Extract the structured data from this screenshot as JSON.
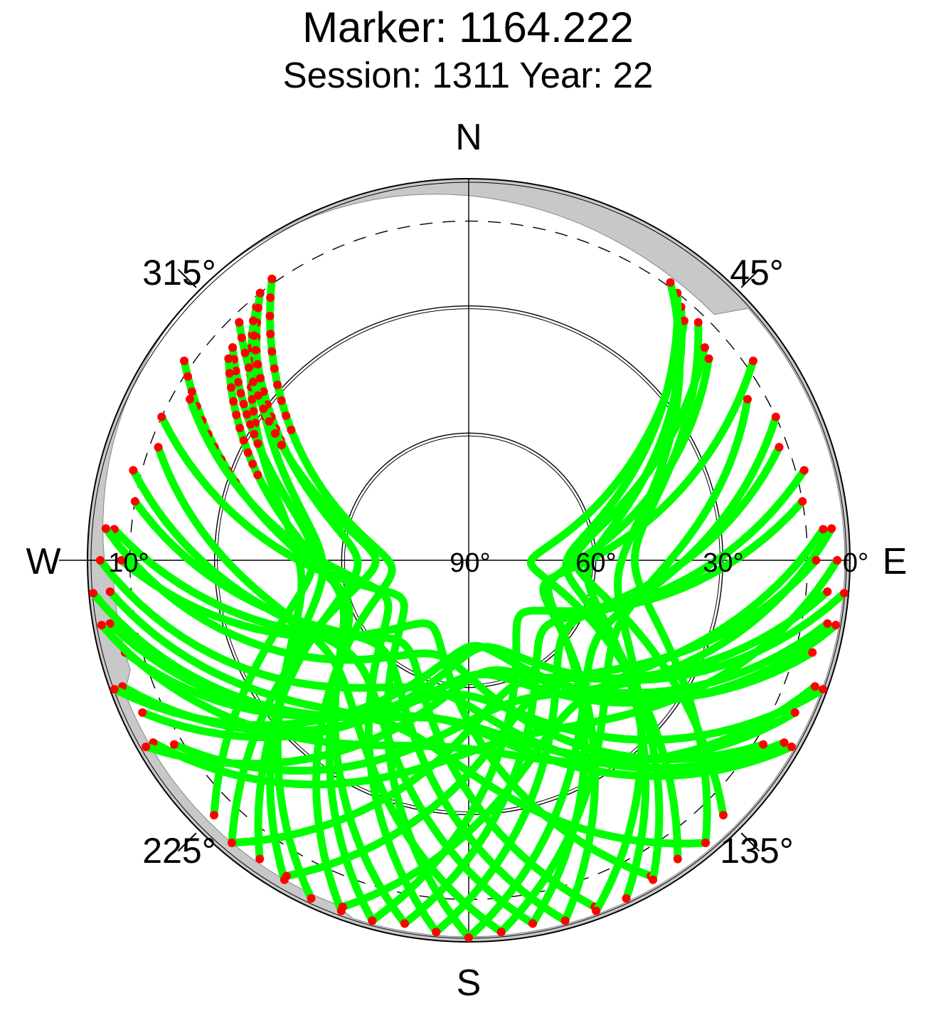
{
  "title": "Marker: 1164.222",
  "subtitle": "Session: 1311 Year: 22",
  "chart_data": {
    "type": "scatter",
    "projection": "polar-skyplot",
    "direction_labels": {
      "north": "N",
      "east": "E",
      "south": "S",
      "west": "W"
    },
    "azimuth_labels": [
      "45°",
      "135°",
      "225°",
      "315°"
    ],
    "elevation_labels": [
      "0°",
      "10°",
      "30°",
      "60°",
      "90°"
    ],
    "elevation_circles": [
      30,
      60
    ],
    "cutoff_elevation": 10,
    "colors": {
      "tracked": "#00ff00",
      "masked": "#ff0000",
      "horizon_mask": "#c8c8c8"
    },
    "tracks": [
      {
        "az0": 320,
        "az1": 205,
        "el0": 12,
        "el1": 2
      },
      {
        "az0": 322,
        "az1": 210,
        "el0": 10,
        "el1": 3
      },
      {
        "az0": 318,
        "az1": 215,
        "el0": 14,
        "el1": 4
      },
      {
        "az0": 316,
        "az1": 220,
        "el0": 12,
        "el1": 3
      },
      {
        "az0": 325,
        "az1": 200,
        "el0": 9,
        "el1": 2
      },
      {
        "az0": 312,
        "az1": 225,
        "el0": 15,
        "el1": 5
      },
      {
        "az0": 310,
        "az1": 190,
        "el0": 16,
        "el1": 3
      },
      {
        "az0": 305,
        "az1": 195,
        "el0": 8,
        "el1": 2
      },
      {
        "az0": 300,
        "az1": 185,
        "el0": 14,
        "el1": 2
      },
      {
        "az0": 295,
        "az1": 180,
        "el0": 10,
        "el1": 1
      },
      {
        "az0": 290,
        "az1": 175,
        "el0": 12,
        "el1": 2
      },
      {
        "az0": 285,
        "az1": 170,
        "el0": 8,
        "el1": 3
      },
      {
        "az0": 280,
        "az1": 165,
        "el0": 10,
        "el1": 2
      },
      {
        "az0": 275,
        "az1": 160,
        "el0": 6,
        "el1": 3
      },
      {
        "az0": 270,
        "az1": 150,
        "el0": 8,
        "el1": 4
      },
      {
        "az0": 265,
        "az1": 140,
        "el0": 5,
        "el1": 3
      },
      {
        "az0": 260,
        "az1": 120,
        "el0": 4,
        "el1": 2
      },
      {
        "az0": 255,
        "az1": 110,
        "el0": 6,
        "el1": 1
      },
      {
        "az0": 250,
        "az1": 100,
        "el0": 3,
        "el1": 2
      },
      {
        "az0": 245,
        "az1": 95,
        "el0": 5,
        "el1": 1
      },
      {
        "az0": 240,
        "az1": 90,
        "el0": 4,
        "el1": 3
      },
      {
        "az0": 238,
        "az1": 85,
        "el0": 8,
        "el1": 4
      },
      {
        "az0": 40,
        "az1": 155,
        "el0": 12,
        "el1": 2
      },
      {
        "az0": 38,
        "az1": 150,
        "el0": 10,
        "el1": 3
      },
      {
        "az0": 42,
        "az1": 145,
        "el0": 14,
        "el1": 4
      },
      {
        "az0": 44,
        "az1": 140,
        "el0": 12,
        "el1": 3
      },
      {
        "az0": 36,
        "az1": 160,
        "el0": 9,
        "el1": 2
      },
      {
        "az0": 48,
        "az1": 135,
        "el0": 15,
        "el1": 5
      },
      {
        "az0": 50,
        "az1": 170,
        "el0": 16,
        "el1": 3
      },
      {
        "az0": 55,
        "az1": 165,
        "el0": 8,
        "el1": 2
      },
      {
        "az0": 60,
        "az1": 175,
        "el0": 14,
        "el1": 2
      },
      {
        "az0": 65,
        "az1": 180,
        "el0": 10,
        "el1": 1
      },
      {
        "az0": 70,
        "az1": 185,
        "el0": 12,
        "el1": 2
      },
      {
        "az0": 75,
        "az1": 190,
        "el0": 8,
        "el1": 3
      },
      {
        "az0": 80,
        "az1": 195,
        "el0": 10,
        "el1": 2
      },
      {
        "az0": 85,
        "az1": 200,
        "el0": 6,
        "el1": 3
      },
      {
        "az0": 90,
        "az1": 210,
        "el0": 8,
        "el1": 4
      },
      {
        "az0": 95,
        "az1": 220,
        "el0": 5,
        "el1": 3
      },
      {
        "az0": 100,
        "az1": 240,
        "el0": 4,
        "el1": 2
      },
      {
        "az0": 105,
        "az1": 250,
        "el0": 6,
        "el1": 1
      },
      {
        "az0": 110,
        "az1": 260,
        "el0": 3,
        "el1": 2
      },
      {
        "az0": 115,
        "az1": 265,
        "el0": 5,
        "el1": 1
      },
      {
        "az0": 120,
        "az1": 270,
        "el0": 4,
        "el1": 3
      },
      {
        "az0": 122,
        "az1": 275,
        "el0": 8,
        "el1": 4
      }
    ]
  }
}
